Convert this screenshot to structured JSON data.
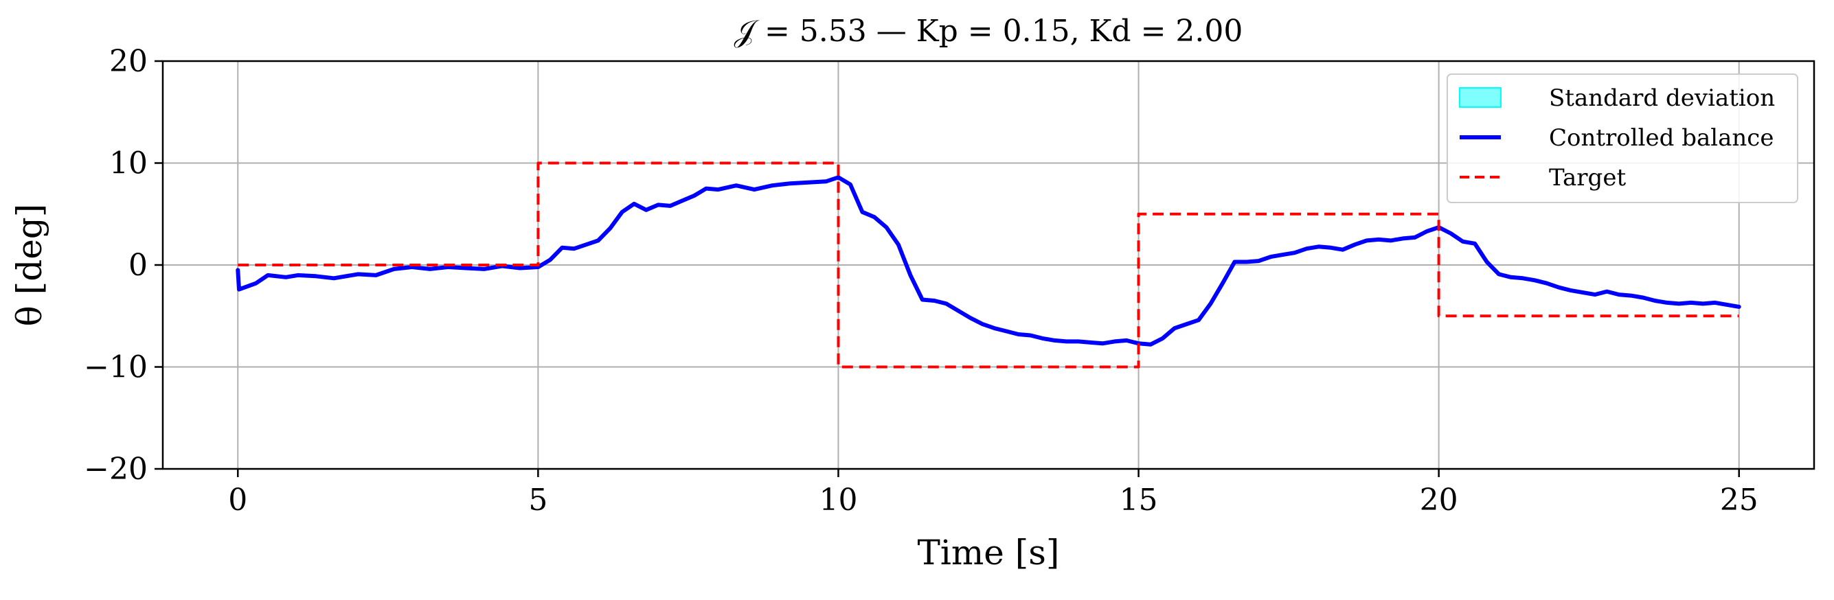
{
  "chart_data": {
    "type": "line",
    "title": "𝒥 = 5.53 — Kp = 0.15, Kd = 2.00",
    "xlabel": "Time [s]",
    "ylabel": "θ [deg]",
    "xlim": [
      -1.25,
      26.25
    ],
    "ylim": [
      -20,
      20
    ],
    "xticks": [
      0,
      5,
      10,
      15,
      20,
      25
    ],
    "yticks": [
      -20,
      -10,
      0,
      10,
      20
    ],
    "xtick_labels": [
      "0",
      "5",
      "10",
      "15",
      "20",
      "25"
    ],
    "ytick_labels": [
      "−20",
      "−10",
      "0",
      "10",
      "20"
    ],
    "grid": true,
    "legend_position": "top-right",
    "legend": [
      {
        "label": "Standard deviation",
        "kind": "fill",
        "color": "#00ffff"
      },
      {
        "label": "Controlled balance",
        "kind": "line",
        "color": "#0000ff"
      },
      {
        "label": "Target",
        "kind": "dashed",
        "color": "#ff0000"
      }
    ],
    "series": [
      {
        "name": "Controlled balance",
        "color": "#0000ff",
        "x": [
          0,
          0.02,
          0.3,
          0.5,
          0.8,
          1.0,
          1.3,
          1.6,
          2.0,
          2.3,
          2.6,
          2.9,
          3.2,
          3.5,
          3.8,
          4.1,
          4.4,
          4.7,
          5.0,
          5.2,
          5.4,
          5.6,
          5.8,
          6.0,
          6.2,
          6.4,
          6.6,
          6.8,
          7.0,
          7.2,
          7.4,
          7.6,
          7.8,
          8.0,
          8.3,
          8.6,
          8.9,
          9.2,
          9.5,
          9.8,
          10.0,
          10.2,
          10.4,
          10.6,
          10.8,
          11.0,
          11.2,
          11.4,
          11.6,
          11.8,
          12.0,
          12.2,
          12.4,
          12.6,
          12.8,
          13.0,
          13.2,
          13.4,
          13.6,
          13.8,
          14.0,
          14.2,
          14.4,
          14.6,
          14.8,
          15.0,
          15.2,
          15.4,
          15.6,
          15.8,
          16.0,
          16.2,
          16.4,
          16.6,
          16.8,
          17.0,
          17.2,
          17.4,
          17.6,
          17.8,
          18.0,
          18.2,
          18.4,
          18.6,
          18.8,
          19.0,
          19.2,
          19.4,
          19.6,
          19.8,
          20.0,
          20.2,
          20.4,
          20.6,
          20.8,
          21.0,
          21.2,
          21.4,
          21.6,
          21.8,
          22.0,
          22.2,
          22.4,
          22.6,
          22.8,
          23.0,
          23.2,
          23.4,
          23.6,
          23.8,
          24.0,
          24.2,
          24.4,
          24.6,
          24.8,
          25.0
        ],
        "y": [
          -0.5,
          -2.4,
          -1.8,
          -1.0,
          -1.2,
          -1.0,
          -1.1,
          -1.3,
          -0.9,
          -1.0,
          -0.4,
          -0.2,
          -0.4,
          -0.2,
          -0.3,
          -0.4,
          -0.1,
          -0.3,
          -0.2,
          0.5,
          1.7,
          1.6,
          2.0,
          2.4,
          3.6,
          5.2,
          6.0,
          5.4,
          5.9,
          5.8,
          6.3,
          6.8,
          7.5,
          7.4,
          7.8,
          7.4,
          7.8,
          8.0,
          8.1,
          8.2,
          8.6,
          7.9,
          5.2,
          4.7,
          3.7,
          2.0,
          -1.0,
          -3.4,
          -3.5,
          -3.8,
          -4.5,
          -5.2,
          -5.8,
          -6.2,
          -6.5,
          -6.8,
          -6.9,
          -7.2,
          -7.4,
          -7.5,
          -7.5,
          -7.6,
          -7.7,
          -7.5,
          -7.4,
          -7.7,
          -7.8,
          -7.2,
          -6.2,
          -5.8,
          -5.4,
          -3.8,
          -1.8,
          0.3,
          0.3,
          0.4,
          0.8,
          1.0,
          1.2,
          1.6,
          1.8,
          1.7,
          1.5,
          2.0,
          2.4,
          2.5,
          2.4,
          2.6,
          2.7,
          3.3,
          3.7,
          3.1,
          2.3,
          2.1,
          0.3,
          -0.9,
          -1.2,
          -1.3,
          -1.5,
          -1.8,
          -2.2,
          -2.5,
          -2.7,
          -2.9,
          -2.6,
          -2.9,
          -3.0,
          -3.2,
          -3.5,
          -3.7,
          -3.8,
          -3.7,
          -3.8,
          -3.7,
          -3.9,
          -4.1
        ]
      },
      {
        "name": "Target",
        "color": "#ff0000",
        "dashed": true,
        "x": [
          0,
          5,
          5,
          10,
          10,
          15,
          15,
          20,
          20,
          25
        ],
        "y": [
          0,
          0,
          10,
          10,
          -10,
          -10,
          5,
          5,
          -5,
          -5
        ]
      }
    ]
  }
}
